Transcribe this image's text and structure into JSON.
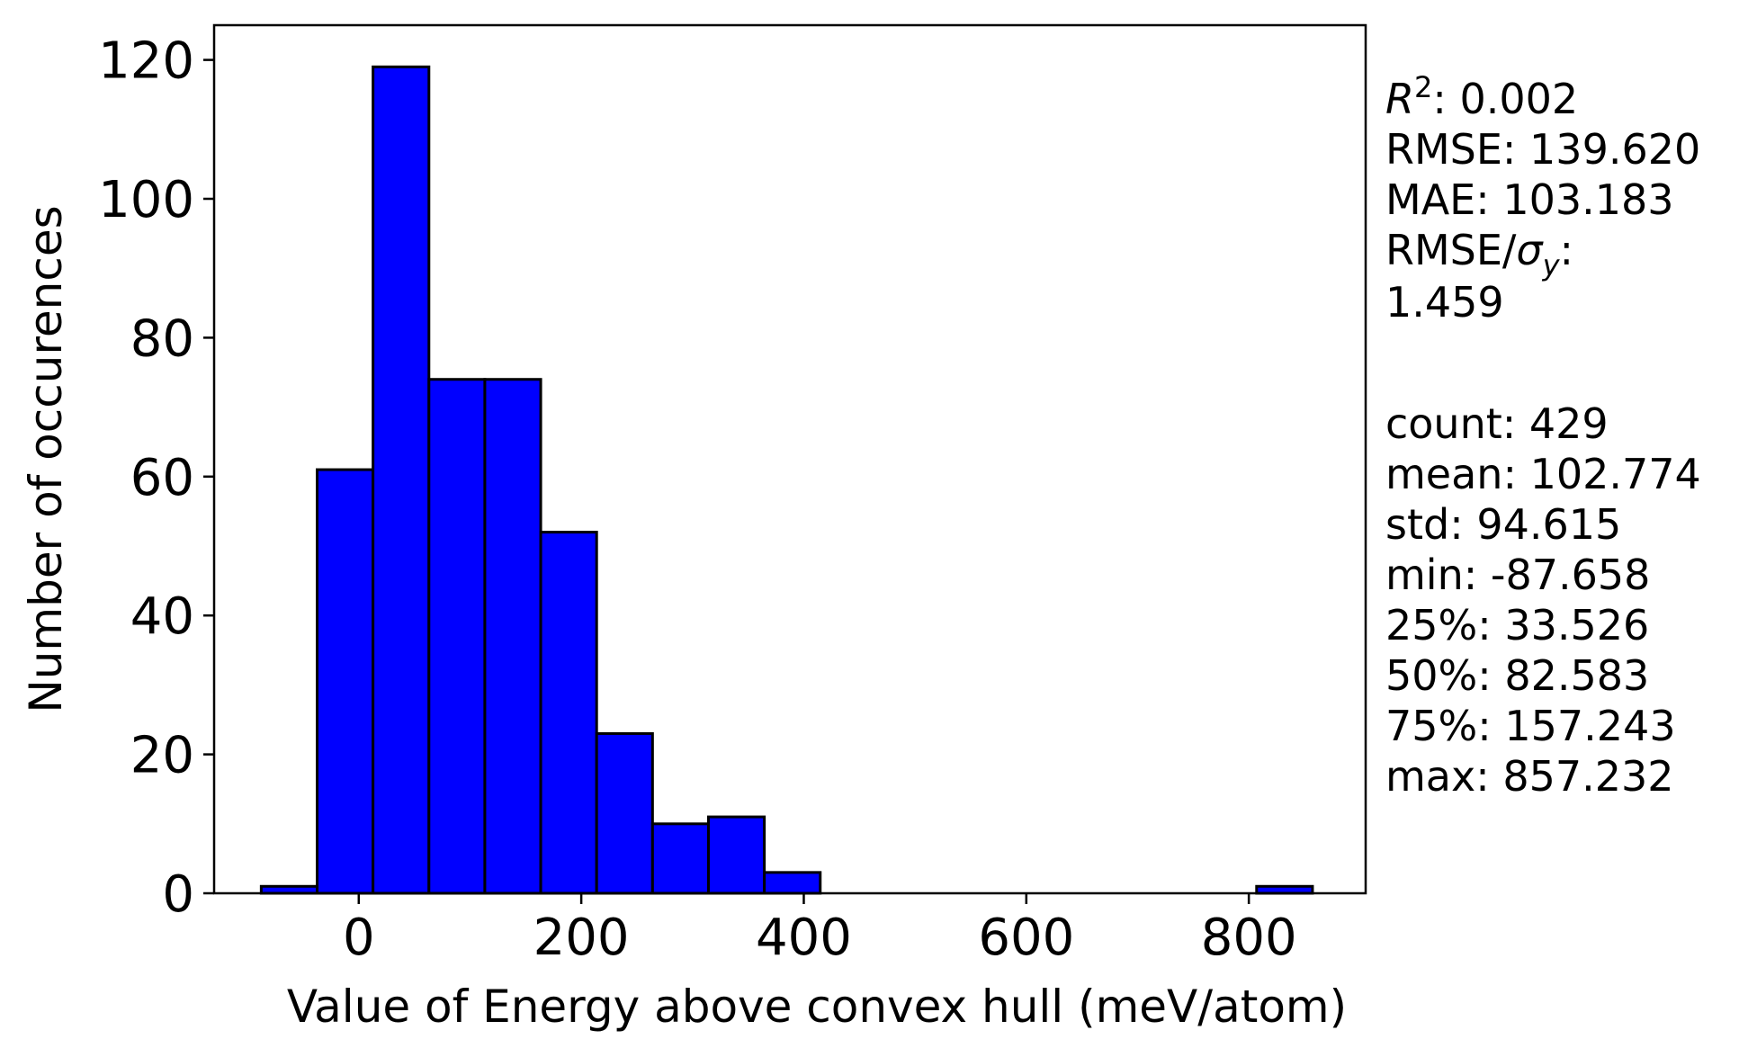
{
  "chart_data": {
    "type": "bar",
    "subtype": "histogram",
    "xlabel": "Value of Energy above convex hull (meV/atom)",
    "ylabel": "Number of occurences",
    "xlim": [
      -130,
      905
    ],
    "ylim": [
      0,
      125
    ],
    "xticks": [
      0,
      200,
      400,
      600,
      800
    ],
    "yticks": [
      0,
      20,
      40,
      60,
      80,
      100,
      120
    ],
    "grid": false,
    "bar_color": "#0000ff",
    "edge_color": "#000000",
    "bins": [
      {
        "x0": -87.658,
        "x1": -37.413,
        "count": 1
      },
      {
        "x0": -37.413,
        "x1": 12.832,
        "count": 61
      },
      {
        "x0": 12.832,
        "x1": 63.076,
        "count": 119
      },
      {
        "x0": 63.076,
        "x1": 113.321,
        "count": 74
      },
      {
        "x0": 113.321,
        "x1": 163.566,
        "count": 74
      },
      {
        "x0": 163.566,
        "x1": 213.81,
        "count": 52
      },
      {
        "x0": 213.81,
        "x1": 264.055,
        "count": 23
      },
      {
        "x0": 264.055,
        "x1": 314.3,
        "count": 10
      },
      {
        "x0": 314.3,
        "x1": 364.544,
        "count": 11
      },
      {
        "x0": 364.544,
        "x1": 414.789,
        "count": 3
      },
      {
        "x0": 806.987,
        "x1": 857.232,
        "count": 1
      }
    ],
    "annotations": {
      "metrics": [
        {
          "label": "R",
          "sup": "2",
          "value": ": 0.002"
        },
        {
          "label": "RMSE",
          "value": ": 139.620"
        },
        {
          "label": "MAE",
          "value": ": 103.183"
        },
        {
          "label": "RMSE/σ",
          "sub": "y",
          "value": ":"
        },
        {
          "label": "1.459",
          "value": ""
        }
      ],
      "stats": [
        "count: 429",
        "mean: 102.774",
        "std: 94.615",
        "min: -87.658",
        "25%: 33.526",
        "50%: 82.583",
        "75%: 157.243",
        "max: 857.232"
      ]
    }
  }
}
